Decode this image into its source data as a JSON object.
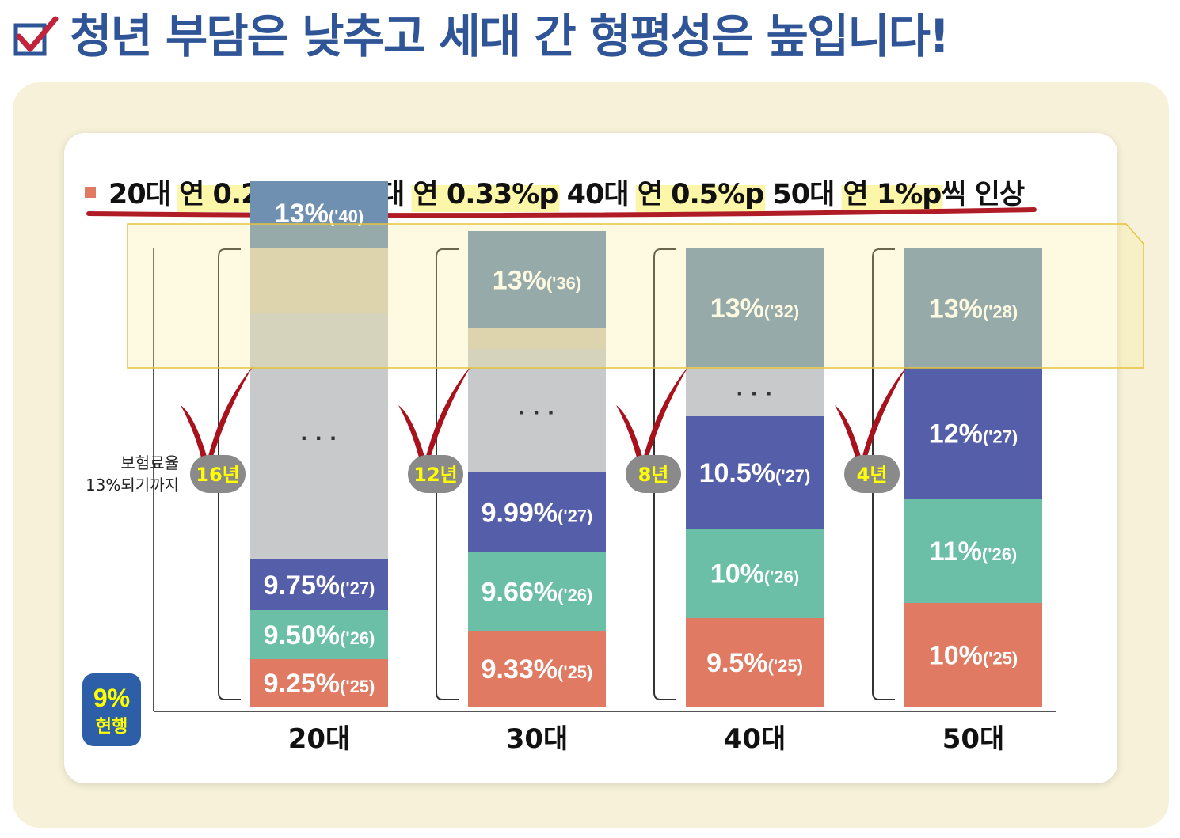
{
  "headline": "청년 부담은 낮추고 세대 간 형평성은 높입니다!",
  "icons": {
    "headline": "checkbox-check-icon",
    "milestone": "red-check-icon"
  },
  "colors": {
    "headline": "#2f5597",
    "outer_bg": "#f6f1d8",
    "underline": "#b01c25",
    "year_badge": "#8a8a8a",
    "year_badge_text": "#ffff00",
    "current_badge": "#2c5fa8"
  },
  "subtitle": {
    "parts": [
      {
        "text": "20대 ",
        "hl": false
      },
      {
        "text": "연 0.25%p",
        "hl": true
      },
      {
        "text": ", 30대 ",
        "hl": false
      },
      {
        "text": "연 0.33%p",
        "hl": true
      },
      {
        "text": " 40대 ",
        "hl": false
      },
      {
        "text": "연 0.5%p",
        "hl": true
      },
      {
        "text": " 50대 ",
        "hl": false
      },
      {
        "text": "연 1%p",
        "hl": true
      },
      {
        "text": "씩 인상",
        "hl": false
      }
    ]
  },
  "ylabel": [
    "보험료율",
    "13%되기까지"
  ],
  "current_badge": [
    "9%",
    "현행"
  ],
  "chart_data": {
    "type": "bar",
    "categories": [
      "20대",
      "30대",
      "40대",
      "50대"
    ],
    "years_to_13": [
      "16년",
      "12년",
      "8년",
      "4년"
    ],
    "columns": [
      {
        "category": "20대",
        "segments": [
          {
            "rate": "9.25%",
            "year": "('25)",
            "color": "#e07a63"
          },
          {
            "rate": "9.50%",
            "year": "('26)",
            "color": "#6abfa6"
          },
          {
            "rate": "9.75%",
            "year": "('27)",
            "color": "#545ea9"
          },
          {
            "rate": "· · ·",
            "year": "",
            "color": "#c8c9cb"
          },
          {
            "rate": "",
            "year": "",
            "color": "#d2c9b4"
          },
          {
            "rate": "13%",
            "year": "('40)",
            "color": "#6f90b0"
          }
        ]
      },
      {
        "category": "30대",
        "segments": [
          {
            "rate": "9.33%",
            "year": "('25)",
            "color": "#e07a63"
          },
          {
            "rate": "9.66%",
            "year": "('26)",
            "color": "#6abfa6"
          },
          {
            "rate": "9.99%",
            "year": "('27)",
            "color": "#545ea9"
          },
          {
            "rate": "· · ·",
            "year": "",
            "color": "#c8c9cb"
          },
          {
            "rate": "",
            "year": "",
            "color": "#d2c9b4"
          },
          {
            "rate": "13%",
            "year": "('36)",
            "color": "#6f90b0"
          }
        ]
      },
      {
        "category": "40대",
        "segments": [
          {
            "rate": "9.5%",
            "year": "('25)",
            "color": "#e07a63"
          },
          {
            "rate": "10%",
            "year": "('26)",
            "color": "#6abfa6"
          },
          {
            "rate": "10.5%",
            "year": "('27)",
            "color": "#545ea9"
          },
          {
            "rate": "· · ·",
            "year": "",
            "color": "#c8c9cb"
          },
          {
            "rate": "13%",
            "year": "('32)",
            "color": "#6f90b0"
          }
        ]
      },
      {
        "category": "50대",
        "segments": [
          {
            "rate": "10%",
            "year": "('25)",
            "color": "#e07a63"
          },
          {
            "rate": "11%",
            "year": "('26)",
            "color": "#6abfa6"
          },
          {
            "rate": "12%",
            "year": "('27)",
            "color": "#545ea9"
          },
          {
            "rate": "13%",
            "year": "('28)",
            "color": "#6f90b0"
          }
        ]
      }
    ]
  }
}
